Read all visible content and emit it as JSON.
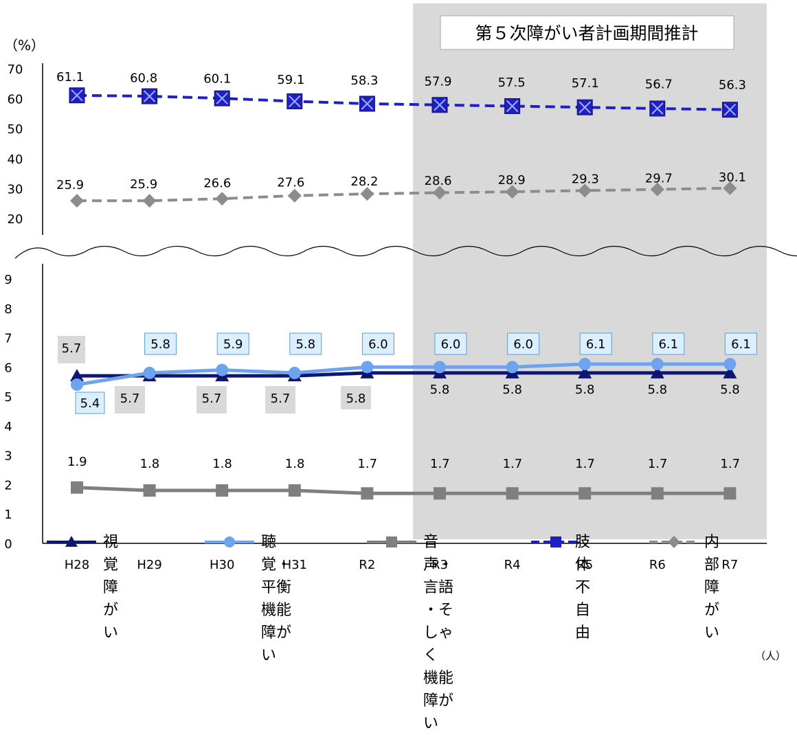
{
  "chart_data": {
    "type": "line",
    "categories": [
      "H28",
      "H29",
      "H30",
      "H31",
      "R2",
      "R3",
      "R4",
      "R5",
      "R6",
      "R7"
    ],
    "y_unit_label": "（%）",
    "x_unit_label": "（人）",
    "shaded_period": {
      "label": "第５次障がい者計画期間推計",
      "from": "R3",
      "to": "R7"
    },
    "axis_break": true,
    "y_ticks_upper": [
      20,
      30,
      40,
      50,
      60,
      70
    ],
    "y_ticks_lower": [
      0,
      1,
      2,
      3,
      4,
      5,
      6,
      7,
      8,
      9
    ],
    "ylim_upper": [
      20,
      70
    ],
    "ylim_lower": [
      0,
      9
    ],
    "grid": false,
    "legend_position": "bottom",
    "series": [
      {
        "name": "視覚障がい",
        "panel": "lower",
        "color": "#0d1670",
        "line": "solid",
        "marker": "triangle",
        "values": [
          5.7,
          5.7,
          5.7,
          5.7,
          5.8,
          5.8,
          5.8,
          5.8,
          5.8,
          5.8
        ]
      },
      {
        "name": "聴覚・平衡\n機能障がい",
        "panel": "lower",
        "color": "#6ea3f0",
        "line": "solid",
        "marker": "circle",
        "values": [
          5.4,
          5.8,
          5.9,
          5.8,
          6.0,
          6.0,
          6.0,
          6.1,
          6.1,
          6.1
        ]
      },
      {
        "name": "音声・言語\n・そしゃく\n機能障がい",
        "panel": "lower",
        "color": "#7f7f7f",
        "line": "solid",
        "marker": "square",
        "values": [
          1.9,
          1.8,
          1.8,
          1.8,
          1.7,
          1.7,
          1.7,
          1.7,
          1.7,
          1.7
        ]
      },
      {
        "name": "肢体\n不自由",
        "panel": "upper",
        "color": "#1f1fc4",
        "line": "dashed",
        "marker": "square-x",
        "values": [
          61.1,
          60.8,
          60.1,
          59.1,
          58.3,
          57.9,
          57.5,
          57.1,
          56.7,
          56.3
        ]
      },
      {
        "name": "内部\n障がい",
        "panel": "upper",
        "color": "#8c8c8c",
        "line": "dashed",
        "marker": "diamond",
        "values": [
          25.9,
          25.9,
          26.6,
          27.6,
          28.2,
          28.6,
          28.9,
          29.3,
          29.7,
          30.1
        ]
      }
    ]
  }
}
